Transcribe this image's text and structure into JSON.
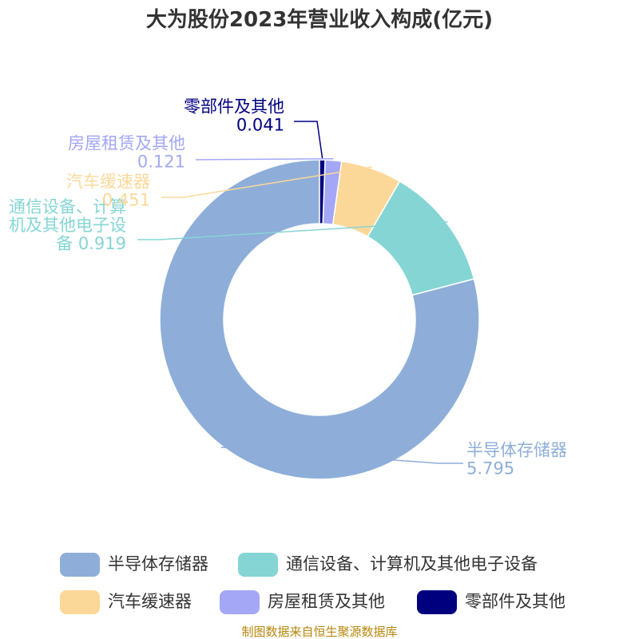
{
  "chart_data": {
    "type": "pie",
    "variant": "donut",
    "title": "大为股份2023年营业收入构成(亿元)",
    "series": [
      {
        "name": "半导体存储器",
        "value": 5.795,
        "color": "#8eaed9",
        "label_lines": [
          "半导体存储器",
          "5.795"
        ]
      },
      {
        "name": "通信设备、计算机及其他电子设备",
        "value": 0.919,
        "color": "#86d5d5",
        "label_lines": [
          "通信设备、计算",
          "机及其他电子设",
          "备 0.919"
        ]
      },
      {
        "name": "汽车缓速器",
        "value": 0.451,
        "color": "#fcd898",
        "label_lines": [
          "汽车缓速器",
          "0.451"
        ]
      },
      {
        "name": "房屋租赁及其他",
        "value": 0.121,
        "color": "#a3a7f5",
        "label_lines": [
          "房屋租赁及其他",
          "0.121"
        ]
      },
      {
        "name": "零部件及其他",
        "value": 0.041,
        "color": "#00007f",
        "label_lines": [
          "零部件及其他",
          "0.041"
        ]
      }
    ],
    "legend_position": "bottom",
    "source": "制图数据来自恒生聚源数据库"
  }
}
